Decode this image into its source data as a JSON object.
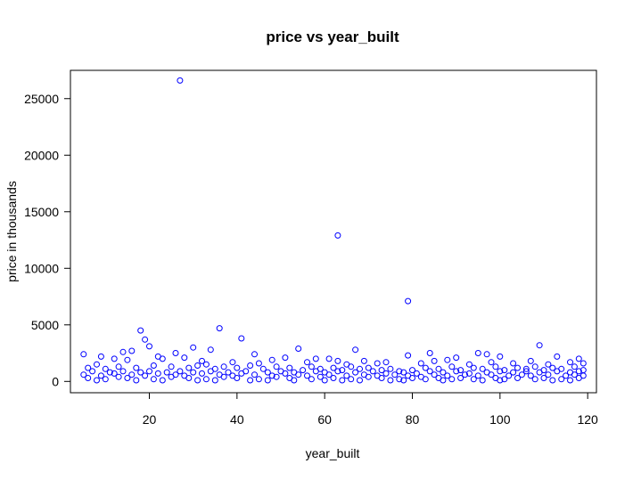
{
  "chart_data": {
    "type": "scatter",
    "title": "price vs year_built",
    "xlabel": "year_built",
    "ylabel": "price in thousands",
    "xlim": [
      2,
      122
    ],
    "ylim": [
      -1000,
      27500
    ],
    "x_ticks": [
      20,
      40,
      60,
      80,
      100,
      120
    ],
    "y_ticks": [
      0,
      5000,
      10000,
      15000,
      20000,
      25000
    ],
    "point_color": "#0000ff",
    "grid": false,
    "legend": "none",
    "series": [
      {
        "name": "",
        "points": [
          [
            27,
            26600
          ],
          [
            63,
            12900
          ],
          [
            79,
            7100
          ],
          [
            18,
            4500
          ],
          [
            36,
            4700
          ],
          [
            41,
            3800
          ],
          [
            19,
            3700
          ],
          [
            20,
            3100
          ],
          [
            30,
            3000
          ],
          [
            109,
            3200
          ],
          [
            54,
            2900
          ],
          [
            67,
            2800
          ],
          [
            34,
            2800
          ],
          [
            14,
            2600
          ],
          [
            16,
            2700
          ],
          [
            26,
            2500
          ],
          [
            5,
            2400
          ],
          [
            44,
            2400
          ],
          [
            84,
            2500
          ],
          [
            95,
            2500
          ],
          [
            97,
            2400
          ],
          [
            100,
            2200
          ],
          [
            113,
            2200
          ],
          [
            118,
            2000
          ],
          [
            90,
            2100
          ],
          [
            12,
            2000
          ],
          [
            9,
            2200
          ],
          [
            58,
            2000
          ],
          [
            61,
            2000
          ],
          [
            63,
            1800
          ],
          [
            69,
            1800
          ],
          [
            74,
            1700
          ],
          [
            79,
            2300
          ],
          [
            85,
            1800
          ],
          [
            88,
            1900
          ],
          [
            103,
            1600
          ],
          [
            107,
            1800
          ],
          [
            116,
            1700
          ],
          [
            119,
            1600
          ],
          [
            48,
            1900
          ],
          [
            51,
            2100
          ],
          [
            39,
            1700
          ],
          [
            23,
            2000
          ],
          [
            32,
            1800
          ],
          [
            8,
            1500
          ],
          [
            15,
            1900
          ],
          [
            22,
            2200
          ],
          [
            28,
            2100
          ],
          [
            33,
            1500
          ],
          [
            45,
            1600
          ],
          [
            56,
            1700
          ],
          [
            65,
            1500
          ],
          [
            72,
            1600
          ],
          [
            82,
            1600
          ],
          [
            93,
            1500
          ],
          [
            98,
            1700
          ],
          [
            111,
            1500
          ],
          [
            6,
            1200
          ],
          [
            10,
            1100
          ],
          [
            13,
            1300
          ],
          [
            17,
            1200
          ],
          [
            21,
            1400
          ],
          [
            25,
            1300
          ],
          [
            29,
            1200
          ],
          [
            31,
            1400
          ],
          [
            35,
            1100
          ],
          [
            37,
            1300
          ],
          [
            40,
            1200
          ],
          [
            43,
            1400
          ],
          [
            46,
            1100
          ],
          [
            49,
            1300
          ],
          [
            52,
            1200
          ],
          [
            55,
            1000
          ],
          [
            57,
            1300
          ],
          [
            59,
            1100
          ],
          [
            62,
            1200
          ],
          [
            64,
            1000
          ],
          [
            66,
            1300
          ],
          [
            68,
            1100
          ],
          [
            70,
            1200
          ],
          [
            73,
            1000
          ],
          [
            75,
            1100
          ],
          [
            77,
            900
          ],
          [
            80,
            1000
          ],
          [
            83,
            1200
          ],
          [
            86,
            1100
          ],
          [
            89,
            1300
          ],
          [
            91,
            1000
          ],
          [
            94,
            1200
          ],
          [
            96,
            1100
          ],
          [
            99,
            1300
          ],
          [
            101,
            1000
          ],
          [
            104,
            1200
          ],
          [
            106,
            1100
          ],
          [
            108,
            1300
          ],
          [
            110,
            1000
          ],
          [
            112,
            1200
          ],
          [
            114,
            1100
          ],
          [
            117,
            1300
          ],
          [
            119,
            1000
          ],
          [
            7,
            900
          ],
          [
            11,
            800
          ],
          [
            14,
            900
          ],
          [
            18,
            800
          ],
          [
            20,
            900
          ],
          [
            24,
            800
          ],
          [
            27,
            900
          ],
          [
            30,
            800
          ],
          [
            34,
            900
          ],
          [
            38,
            800
          ],
          [
            42,
            900
          ],
          [
            47,
            800
          ],
          [
            50,
            900
          ],
          [
            53,
            800
          ],
          [
            58,
            900
          ],
          [
            60,
            800
          ],
          [
            63,
            900
          ],
          [
            67,
            800
          ],
          [
            71,
            900
          ],
          [
            74,
            700
          ],
          [
            78,
            800
          ],
          [
            81,
            700
          ],
          [
            84,
            900
          ],
          [
            87,
            800
          ],
          [
            90,
            900
          ],
          [
            93,
            700
          ],
          [
            97,
            800
          ],
          [
            100,
            900
          ],
          [
            103,
            800
          ],
          [
            106,
            900
          ],
          [
            109,
            800
          ],
          [
            113,
            900
          ],
          [
            116,
            800
          ],
          [
            118,
            900
          ],
          [
            5,
            600
          ],
          [
            9,
            500
          ],
          [
            12,
            700
          ],
          [
            16,
            600
          ],
          [
            19,
            500
          ],
          [
            22,
            700
          ],
          [
            26,
            600
          ],
          [
            28,
            500
          ],
          [
            32,
            700
          ],
          [
            36,
            600
          ],
          [
            39,
            500
          ],
          [
            41,
            700
          ],
          [
            44,
            600
          ],
          [
            48,
            500
          ],
          [
            51,
            700
          ],
          [
            54,
            600
          ],
          [
            56,
            500
          ],
          [
            61,
            600
          ],
          [
            65,
            500
          ],
          [
            69,
            600
          ],
          [
            72,
            500
          ],
          [
            76,
            600
          ],
          [
            79,
            500
          ],
          [
            82,
            400
          ],
          [
            85,
            600
          ],
          [
            88,
            500
          ],
          [
            92,
            600
          ],
          [
            95,
            500
          ],
          [
            98,
            600
          ],
          [
            102,
            500
          ],
          [
            105,
            600
          ],
          [
            107,
            500
          ],
          [
            111,
            600
          ],
          [
            115,
            500
          ],
          [
            117,
            600
          ],
          [
            119,
            500
          ],
          [
            6,
            300
          ],
          [
            10,
            200
          ],
          [
            13,
            400
          ],
          [
            15,
            300
          ],
          [
            21,
            200
          ],
          [
            25,
            400
          ],
          [
            29,
            300
          ],
          [
            33,
            200
          ],
          [
            37,
            400
          ],
          [
            40,
            300
          ],
          [
            45,
            200
          ],
          [
            49,
            400
          ],
          [
            52,
            300
          ],
          [
            57,
            200
          ],
          [
            59,
            400
          ],
          [
            62,
            300
          ],
          [
            66,
            200
          ],
          [
            70,
            400
          ],
          [
            73,
            300
          ],
          [
            77,
            200
          ],
          [
            80,
            300
          ],
          [
            83,
            200
          ],
          [
            86,
            300
          ],
          [
            89,
            200
          ],
          [
            91,
            300
          ],
          [
            94,
            200
          ],
          [
            99,
            300
          ],
          [
            101,
            200
          ],
          [
            104,
            300
          ],
          [
            108,
            200
          ],
          [
            110,
            300
          ],
          [
            114,
            200
          ],
          [
            118,
            300
          ],
          [
            8,
            100
          ],
          [
            17,
            100
          ],
          [
            23,
            100
          ],
          [
            31,
            100
          ],
          [
            35,
            100
          ],
          [
            43,
            100
          ],
          [
            47,
            100
          ],
          [
            53,
            100
          ],
          [
            60,
            100
          ],
          [
            64,
            100
          ],
          [
            68,
            100
          ],
          [
            75,
            100
          ],
          [
            78,
            100
          ],
          [
            87,
            100
          ],
          [
            96,
            100
          ],
          [
            100,
            100
          ],
          [
            112,
            100
          ],
          [
            116,
            100
          ]
        ]
      }
    ]
  }
}
